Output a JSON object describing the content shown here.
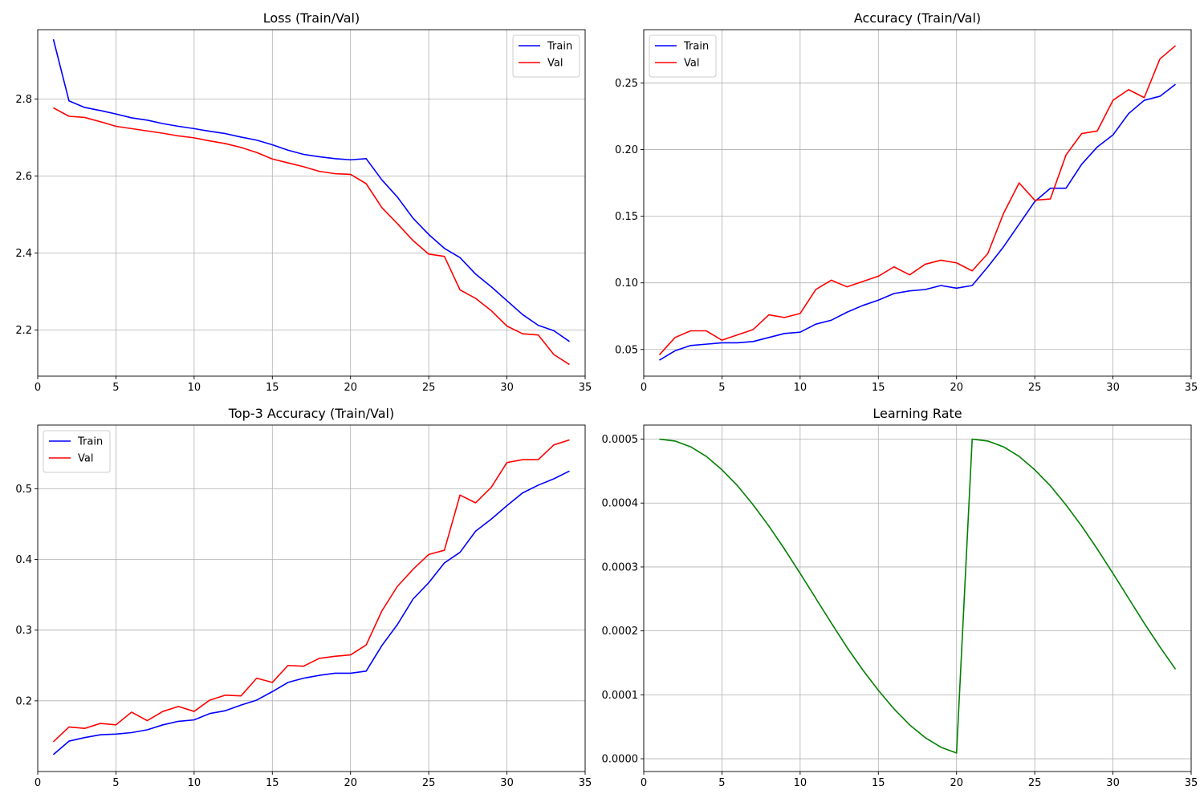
{
  "chart_data": [
    {
      "type": "line",
      "title": "Loss (Train/Val)",
      "xlabel": "",
      "ylabel": "",
      "xlim": [
        0,
        35
      ],
      "ylim": [
        2.08,
        2.98
      ],
      "x_ticks": [
        0,
        5,
        10,
        15,
        20,
        25,
        30,
        35
      ],
      "y_ticks": [
        2.2,
        2.4,
        2.6,
        2.8
      ],
      "y_decimals": 1,
      "grid": true,
      "legend": "top-right",
      "series": [
        {
          "name": "Train",
          "color": "#0000ff",
          "x": [
            1,
            2,
            3,
            4,
            5,
            6,
            7,
            8,
            9,
            10,
            11,
            12,
            13,
            14,
            15,
            16,
            17,
            18,
            19,
            20,
            21,
            22,
            23,
            24,
            25,
            26,
            27,
            28,
            29,
            30,
            31,
            32,
            33,
            34
          ],
          "y": [
            2.955,
            2.795,
            2.778,
            2.77,
            2.761,
            2.751,
            2.745,
            2.736,
            2.729,
            2.723,
            2.716,
            2.71,
            2.701,
            2.693,
            2.681,
            2.667,
            2.656,
            2.65,
            2.645,
            2.642,
            2.645,
            2.59,
            2.545,
            2.49,
            2.448,
            2.412,
            2.388,
            2.345,
            2.312,
            2.276,
            2.24,
            2.212,
            2.198,
            2.17
          ]
        },
        {
          "name": "Val",
          "color": "#ff0000",
          "x": [
            1,
            2,
            3,
            4,
            5,
            6,
            7,
            8,
            9,
            10,
            11,
            12,
            13,
            14,
            15,
            16,
            17,
            18,
            19,
            20,
            21,
            22,
            23,
            24,
            25,
            26,
            27,
            28,
            29,
            30,
            31,
            32,
            33,
            34
          ],
          "y": [
            2.777,
            2.755,
            2.752,
            2.741,
            2.729,
            2.723,
            2.717,
            2.711,
            2.704,
            2.699,
            2.691,
            2.684,
            2.674,
            2.661,
            2.644,
            2.634,
            2.624,
            2.612,
            2.606,
            2.604,
            2.58,
            2.518,
            2.476,
            2.432,
            2.397,
            2.391,
            2.304,
            2.282,
            2.25,
            2.21,
            2.19,
            2.187,
            2.136,
            2.11
          ]
        }
      ]
    },
    {
      "type": "line",
      "title": "Accuracy (Train/Val)",
      "xlabel": "",
      "ylabel": "",
      "xlim": [
        0,
        35
      ],
      "ylim": [
        0.03,
        0.29
      ],
      "x_ticks": [
        0,
        5,
        10,
        15,
        20,
        25,
        30,
        35
      ],
      "y_ticks": [
        0.05,
        0.1,
        0.15,
        0.2,
        0.25
      ],
      "y_decimals": 2,
      "grid": true,
      "legend": "top-left",
      "series": [
        {
          "name": "Train",
          "color": "#0000ff",
          "x": [
            1,
            2,
            3,
            4,
            5,
            6,
            7,
            8,
            9,
            10,
            11,
            12,
            13,
            14,
            15,
            16,
            17,
            18,
            19,
            20,
            21,
            22,
            23,
            24,
            25,
            26,
            27,
            28,
            29,
            30,
            31,
            32,
            33,
            34
          ],
          "y": [
            0.042,
            0.049,
            0.053,
            0.054,
            0.055,
            0.055,
            0.056,
            0.059,
            0.062,
            0.063,
            0.069,
            0.072,
            0.078,
            0.083,
            0.087,
            0.092,
            0.094,
            0.095,
            0.098,
            0.096,
            0.098,
            0.112,
            0.127,
            0.144,
            0.161,
            0.171,
            0.171,
            0.189,
            0.202,
            0.211,
            0.227,
            0.237,
            0.24,
            0.249
          ]
        },
        {
          "name": "Val",
          "color": "#ff0000",
          "x": [
            1,
            2,
            3,
            4,
            5,
            6,
            7,
            8,
            9,
            10,
            11,
            12,
            13,
            14,
            15,
            16,
            17,
            18,
            19,
            20,
            21,
            22,
            23,
            24,
            25,
            26,
            27,
            28,
            29,
            30,
            31,
            32,
            33,
            34
          ],
          "y": [
            0.046,
            0.059,
            0.064,
            0.064,
            0.057,
            0.061,
            0.065,
            0.076,
            0.074,
            0.077,
            0.095,
            0.102,
            0.097,
            0.101,
            0.105,
            0.112,
            0.106,
            0.114,
            0.117,
            0.115,
            0.109,
            0.122,
            0.152,
            0.175,
            0.162,
            0.163,
            0.196,
            0.212,
            0.214,
            0.237,
            0.245,
            0.239,
            0.268,
            0.278
          ]
        }
      ]
    },
    {
      "type": "line",
      "title": "Top-3 Accuracy (Train/Val)",
      "xlabel": "",
      "ylabel": "",
      "xlim": [
        0,
        35
      ],
      "ylim": [
        0.1,
        0.59
      ],
      "x_ticks": [
        0,
        5,
        10,
        15,
        20,
        25,
        30,
        35
      ],
      "y_ticks": [
        0.2,
        0.3,
        0.4,
        0.5
      ],
      "y_decimals": 1,
      "grid": true,
      "legend": "top-left",
      "series": [
        {
          "name": "Train",
          "color": "#0000ff",
          "x": [
            1,
            2,
            3,
            4,
            5,
            6,
            7,
            8,
            9,
            10,
            11,
            12,
            13,
            14,
            15,
            16,
            17,
            18,
            19,
            20,
            21,
            22,
            23,
            24,
            25,
            26,
            27,
            28,
            29,
            30,
            31,
            32,
            33,
            34
          ],
          "y": [
            0.124,
            0.143,
            0.148,
            0.152,
            0.153,
            0.155,
            0.159,
            0.166,
            0.171,
            0.173,
            0.182,
            0.186,
            0.194,
            0.201,
            0.213,
            0.226,
            0.232,
            0.236,
            0.239,
            0.239,
            0.242,
            0.278,
            0.308,
            0.344,
            0.367,
            0.395,
            0.41,
            0.44,
            0.457,
            0.476,
            0.494,
            0.505,
            0.514,
            0.525
          ]
        },
        {
          "name": "Val",
          "color": "#ff0000",
          "x": [
            1,
            2,
            3,
            4,
            5,
            6,
            7,
            8,
            9,
            10,
            11,
            12,
            13,
            14,
            15,
            16,
            17,
            18,
            19,
            20,
            21,
            22,
            23,
            24,
            25,
            26,
            27,
            28,
            29,
            30,
            31,
            32,
            33,
            34
          ],
          "y": [
            0.142,
            0.163,
            0.161,
            0.168,
            0.166,
            0.184,
            0.172,
            0.185,
            0.192,
            0.185,
            0.201,
            0.208,
            0.207,
            0.232,
            0.226,
            0.25,
            0.249,
            0.26,
            0.263,
            0.265,
            0.279,
            0.327,
            0.362,
            0.386,
            0.407,
            0.413,
            0.491,
            0.48,
            0.502,
            0.537,
            0.541,
            0.541,
            0.562,
            0.569
          ]
        }
      ]
    },
    {
      "type": "line",
      "title": "Learning Rate",
      "xlabel": "",
      "ylabel": "",
      "xlim": [
        0,
        35
      ],
      "ylim": [
        -2e-05,
        0.000522
      ],
      "x_ticks": [
        0,
        5,
        10,
        15,
        20,
        25,
        30,
        35
      ],
      "y_ticks": [
        0.0,
        0.0001,
        0.0002,
        0.0003,
        0.0004,
        0.0005
      ],
      "y_decimals": 4,
      "grid": true,
      "legend": "none",
      "series": [
        {
          "name": "",
          "color": "#008000",
          "x": [
            1,
            2,
            3,
            4,
            5,
            6,
            7,
            8,
            9,
            10,
            11,
            12,
            13,
            14,
            15,
            16,
            17,
            18,
            19,
            20,
            21,
            22,
            23,
            24,
            25,
            26,
            27,
            28,
            29,
            30,
            31,
            32,
            33,
            34
          ],
          "y": [
            0.0005,
            0.000497,
            0.000488,
            0.000473,
            0.000452,
            0.000427,
            0.000397,
            0.000364,
            0.000328,
            0.00029,
            0.000251,
            0.000212,
            0.000174,
            0.000139,
            0.000107,
            7.8e-05,
            5.3e-05,
            3.3e-05,
            1.8e-05,
            9e-06,
            0.0005,
            0.000497,
            0.000488,
            0.000473,
            0.000452,
            0.000427,
            0.000397,
            0.000364,
            0.000328,
            0.00029,
            0.000251,
            0.000212,
            0.000175,
            0.00014
          ]
        }
      ]
    }
  ]
}
